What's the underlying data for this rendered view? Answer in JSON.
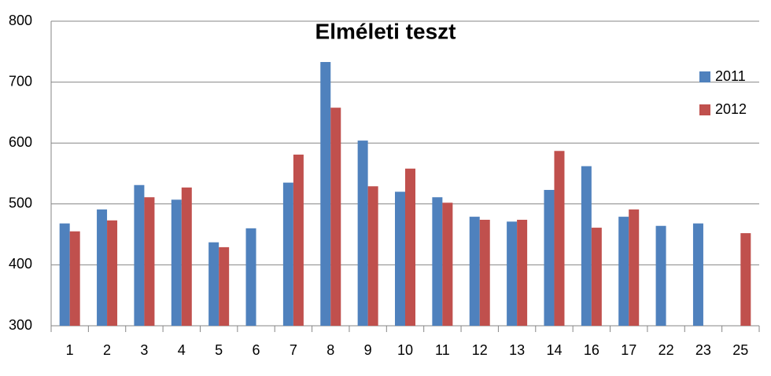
{
  "chart_data": {
    "type": "bar",
    "title": "Elméleti teszt",
    "categories": [
      "1",
      "2",
      "3",
      "4",
      "5",
      "6",
      "7",
      "8",
      "9",
      "10",
      "11",
      "12",
      "13",
      "14",
      "16",
      "17",
      "22",
      "23",
      "25"
    ],
    "series": [
      {
        "name": "2011",
        "color": "#4f81bd",
        "values": [
          468,
          491,
          531,
          507,
          437,
          460,
          535,
          733,
          604,
          520,
          511,
          479,
          471,
          523,
          562,
          479,
          464,
          468,
          null
        ]
      },
      {
        "name": "2012",
        "color": "#c0504d",
        "values": [
          455,
          473,
          511,
          527,
          429,
          null,
          581,
          658,
          529,
          558,
          502,
          474,
          474,
          587,
          461,
          491,
          null,
          null,
          452
        ]
      }
    ],
    "ylim": [
      300,
      800
    ],
    "yticks": [
      300,
      400,
      500,
      600,
      700,
      800
    ],
    "grid": true,
    "legend": "right"
  }
}
